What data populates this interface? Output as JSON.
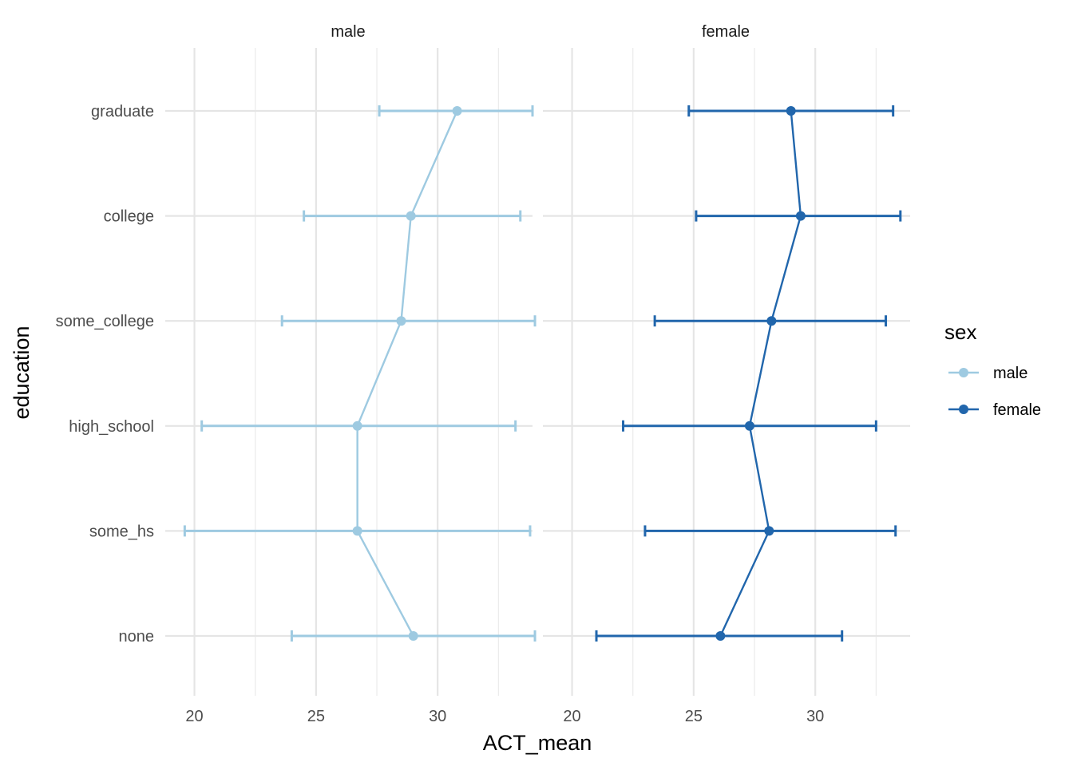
{
  "chart_data": {
    "type": "line",
    "xlabel": "ACT_mean",
    "ylabel": "education",
    "xlim": [
      18.8,
      33.9
    ],
    "x_ticks": [
      20,
      25,
      30
    ],
    "categories": [
      "none",
      "some_hs",
      "high_school",
      "some_college",
      "college",
      "graduate"
    ],
    "facets": [
      "male",
      "female"
    ],
    "grid": true,
    "legend": {
      "title": "sex",
      "position": "right",
      "entries": [
        {
          "label": "male",
          "color": "#9ecae1"
        },
        {
          "label": "female",
          "color": "#2166ac"
        }
      ]
    },
    "series": [
      {
        "name": "male",
        "facet": "male",
        "color": "#9ecae1",
        "mean": [
          29.0,
          26.7,
          26.7,
          28.5,
          28.9,
          30.8
        ],
        "lower": [
          24.0,
          19.6,
          20.3,
          23.6,
          24.5,
          27.6
        ],
        "upper": [
          34.0,
          33.8,
          33.2,
          34.0,
          33.4,
          33.9
        ]
      },
      {
        "name": "female",
        "facet": "female",
        "color": "#2166ac",
        "mean": [
          26.1,
          28.1,
          27.3,
          28.2,
          29.4,
          29.0
        ],
        "lower": [
          21.0,
          23.0,
          22.1,
          23.4,
          25.1,
          24.8
        ],
        "upper": [
          31.1,
          33.3,
          32.5,
          32.9,
          33.5,
          33.2
        ]
      }
    ]
  }
}
